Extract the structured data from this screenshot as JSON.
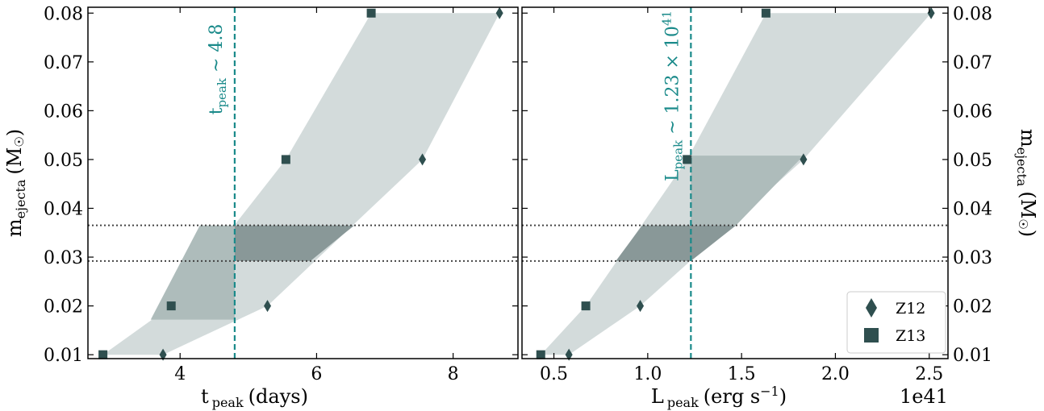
{
  "chart_data": [
    {
      "type": "scatter",
      "panel": "left",
      "xlabel": "t",
      "xlabel_sub": "peak",
      "xlabel_tail": "(days)",
      "ylabel": "m",
      "ylabel_sub": "ejecta",
      "ylabel_tail": "(M",
      "ylabel_sun": "☉",
      "ylabel_close": ")",
      "xlim": [
        2.65,
        8.95
      ],
      "ylim": [
        0.0092,
        0.0812
      ],
      "xticks": [
        4,
        6,
        8
      ],
      "xtick_labels": [
        "4",
        "6",
        "8"
      ],
      "yticks": [
        0.01,
        0.02,
        0.03,
        0.04,
        0.05,
        0.06,
        0.07,
        0.08
      ],
      "ytick_labels": [
        "0.01",
        "0.02",
        "0.03",
        "0.04",
        "0.05",
        "0.06",
        "0.07",
        "0.08"
      ],
      "series": [
        {
          "name": "Z12",
          "marker": "diamond",
          "x": [
            3.75,
            5.28,
            7.55,
            8.68
          ],
          "y": [
            0.01,
            0.02,
            0.05,
            0.08
          ]
        },
        {
          "name": "Z13",
          "marker": "square",
          "x": [
            2.87,
            3.87,
            5.55,
            6.8
          ],
          "y": [
            0.01,
            0.02,
            0.05,
            0.08
          ]
        }
      ],
      "shaded_region": {
        "light": [
          [
            2.87,
            0.01
          ],
          [
            3.75,
            0.01
          ],
          [
            5.28,
            0.02
          ],
          [
            7.55,
            0.05
          ],
          [
            8.68,
            0.08
          ],
          [
            6.8,
            0.08
          ],
          [
            5.55,
            0.05
          ],
          [
            3.87,
            0.02
          ]
        ],
        "medium": [
          [
            3.57,
            0.0172
          ],
          [
            4.8,
            0.0172
          ],
          [
            4.8,
            0.0365
          ],
          [
            4.29,
            0.0365
          ]
        ],
        "dark": [
          [
            4.8,
            0.0365
          ],
          [
            6.55,
            0.0365
          ],
          [
            5.91,
            0.0292
          ],
          [
            4.8,
            0.0292
          ]
        ]
      },
      "vline": {
        "x": 4.8,
        "label": "t",
        "label_sub": "peak",
        "label_tail": " ~ 4.8"
      },
      "hlines": [
        0.0365,
        0.0292
      ]
    },
    {
      "type": "scatter",
      "panel": "right",
      "xlabel": "L",
      "xlabel_sub": "peak",
      "xlabel_tail": "(erg s",
      "xlabel_sup": "−1",
      "xlabel_close": ")",
      "offset_text": "1e41",
      "ylabel": "m",
      "ylabel_sub": "ejecta",
      "ylabel_tail": "(M",
      "ylabel_sun": "☉",
      "ylabel_close": ")",
      "xlim": [
        0.33,
        2.6
      ],
      "ylim": [
        0.0092,
        0.0812
      ],
      "xticks": [
        0.5,
        1.0,
        1.5,
        2.0,
        2.5
      ],
      "xtick_labels": [
        "0.5",
        "1.0",
        "1.5",
        "2.0",
        "2.5"
      ],
      "yticks": [
        0.01,
        0.02,
        0.03,
        0.04,
        0.05,
        0.06,
        0.07,
        0.08
      ],
      "ytick_labels": [
        "0.01",
        "0.02",
        "0.03",
        "0.04",
        "0.05",
        "0.06",
        "0.07",
        "0.08"
      ],
      "series": [
        {
          "name": "Z12",
          "marker": "diamond",
          "x": [
            0.58,
            0.96,
            1.83,
            2.51
          ],
          "y": [
            0.01,
            0.02,
            0.05,
            0.08
          ]
        },
        {
          "name": "Z13",
          "marker": "square",
          "x": [
            0.43,
            0.67,
            1.21,
            1.63
          ],
          "y": [
            0.01,
            0.02,
            0.05,
            0.08
          ]
        }
      ],
      "shaded_region": {
        "light": [
          [
            0.43,
            0.01
          ],
          [
            0.58,
            0.01
          ],
          [
            0.96,
            0.02
          ],
          [
            1.83,
            0.05
          ],
          [
            2.51,
            0.08
          ],
          [
            1.63,
            0.08
          ],
          [
            1.21,
            0.05
          ],
          [
            0.67,
            0.02
          ]
        ],
        "medium": [
          [
            1.23,
            0.0508
          ],
          [
            1.83,
            0.0508
          ],
          [
            1.47,
            0.0365
          ],
          [
            1.23,
            0.0365
          ]
        ],
        "dark": [
          [
            0.97,
            0.0365
          ],
          [
            1.47,
            0.0365
          ],
          [
            1.23,
            0.0292
          ],
          [
            0.83,
            0.0292
          ]
        ]
      },
      "vline": {
        "x": 1.23,
        "label": "L",
        "label_sub": "peak",
        "label_tail": " ~ 1.23 × 10",
        "label_sup": "41"
      },
      "hlines": [
        0.0365,
        0.0292
      ]
    }
  ],
  "legend": {
    "position": "lower-right",
    "entries": [
      {
        "label": "Z12",
        "marker": "diamond"
      },
      {
        "label": "Z13",
        "marker": "square"
      }
    ]
  },
  "colors": {
    "marker": "#2f4f4f",
    "vline": "#1a8a8a",
    "hline": "#444444",
    "light_fill": "#d3dbdb",
    "medium_fill": "#aebcbb",
    "dark_fill": "#899898"
  }
}
